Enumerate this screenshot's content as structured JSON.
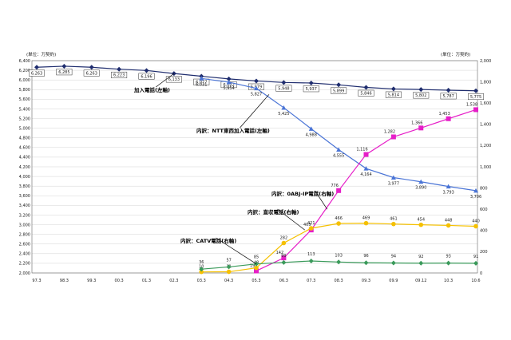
{
  "chart_data": {
    "type": "line",
    "y_left_unit": "(単位：万契約)",
    "y_right_unit": "(単位：万契約)",
    "ylim_left": [
      2000,
      6400
    ],
    "ylim_right": [
      0,
      2000
    ],
    "left_ticks": [
      "2,000",
      "2,200",
      "2,400",
      "2,600",
      "2,800",
      "3,000",
      "3,200",
      "3,400",
      "3,600",
      "3,800",
      "4,000",
      "4,200",
      "4,400",
      "4,600",
      "4,800",
      "5,000",
      "5,200",
      "5,400",
      "5,600",
      "5,800",
      "6,000",
      "6,200",
      "6,400"
    ],
    "right_ticks": [
      "0",
      "200",
      "400",
      "600",
      "800",
      "1,000",
      "1,200",
      "1,400",
      "1,600",
      "1,800",
      "2,000"
    ],
    "categories": [
      "97.3",
      "98.3",
      "99.3",
      "00.3",
      "01.3",
      "02.3",
      "03.3",
      "04.3",
      "05.3",
      "06.3",
      "07.3",
      "08.3",
      "09.3",
      "09.9",
      "09.12",
      "10.3",
      "10.6"
    ],
    "grid": true,
    "series": [
      {
        "name": "加入電話(左軸)",
        "axis": "left",
        "color": "#1f2d6e",
        "marker": "diamond",
        "values": [
          6263,
          6285,
          6263,
          6223,
          6196,
          6133,
          6077,
          6022,
          5979,
          5948,
          5937,
          5899,
          5846,
          5814,
          5802,
          5787,
          5775
        ],
        "labels": [
          "6,263",
          "6,285",
          "6,263",
          "6,223",
          "6,196",
          "6,133",
          "6,077",
          "6,022",
          "5,979",
          "5,948",
          "5,937",
          "5,899",
          "5,846",
          "5,814",
          "5,802",
          "5,787",
          "5,775"
        ]
      },
      {
        "name": "内訳：NTT東西加入電話(左軸)",
        "axis": "left",
        "color": "#4a74d6",
        "marker": "triangle",
        "values": [
          null,
          null,
          null,
          null,
          null,
          null,
          6031,
          5954,
          5827,
          5425,
          4988,
          4555,
          4164,
          3977,
          3890,
          3793,
          3706
        ],
        "labels": [
          "",
          "",
          "",
          "",
          "",
          "",
          "6,031",
          "5,954",
          "5,827",
          "5,425",
          "4,988",
          "4,555",
          "4,164",
          "3,977",
          "3,890",
          "3,793",
          "3,706"
        ]
      },
      {
        "name": "内訳：0ABJ-IP電話(右軸)",
        "axis": "right",
        "color": "#e61ec8",
        "marker": "square",
        "values": [
          null,
          null,
          null,
          null,
          null,
          null,
          null,
          null,
          19,
          142,
          405,
          776,
          1116,
          1282,
          1366,
          1453,
          1538
        ],
        "labels": [
          "",
          "",
          "",
          "",
          "",
          "",
          "",
          "",
          "19",
          "142",
          "405",
          "776",
          "1,116",
          "1,282",
          "1,366",
          "1,453",
          "1,538"
        ]
      },
      {
        "name": "内訳：直収電話(右軸)",
        "axis": "right",
        "color": "#f5c000",
        "marker": "circle",
        "values": [
          null,
          null,
          null,
          null,
          null,
          null,
          10,
          11,
          48,
          282,
          421,
          466,
          469,
          461,
          454,
          448,
          440
        ],
        "labels": [
          "",
          "",
          "",
          "",
          "",
          "",
          "10",
          "11",
          "48",
          "282",
          "421",
          "466",
          "469",
          "461",
          "454",
          "448",
          "440"
        ]
      },
      {
        "name": "内訳：CATV電話(右軸)",
        "axis": "right",
        "color": "#3a9a5a",
        "marker": "diamond",
        "values": [
          null,
          null,
          null,
          null,
          null,
          null,
          36,
          57,
          85,
          99,
          113,
          103,
          96,
          94,
          92,
          93,
          91
        ],
        "labels": [
          "",
          "",
          "",
          "",
          "",
          "",
          "36",
          "57",
          "85",
          "99",
          "113",
          "103",
          "96",
          "94",
          "92",
          "93",
          "91"
        ]
      }
    ],
    "annotations": [
      {
        "text": "加入電話(左軸)",
        "series": 0
      },
      {
        "text": "内訳：NTT東西加入電話(左軸)",
        "series": 1
      },
      {
        "text": "内訳：0ABJ-IP電話(右軸)",
        "series": 2
      },
      {
        "text": "内訳：直収電話(右軸)",
        "series": 3
      },
      {
        "text": "内訳：CATV電話(右軸)",
        "series": 4
      }
    ]
  }
}
